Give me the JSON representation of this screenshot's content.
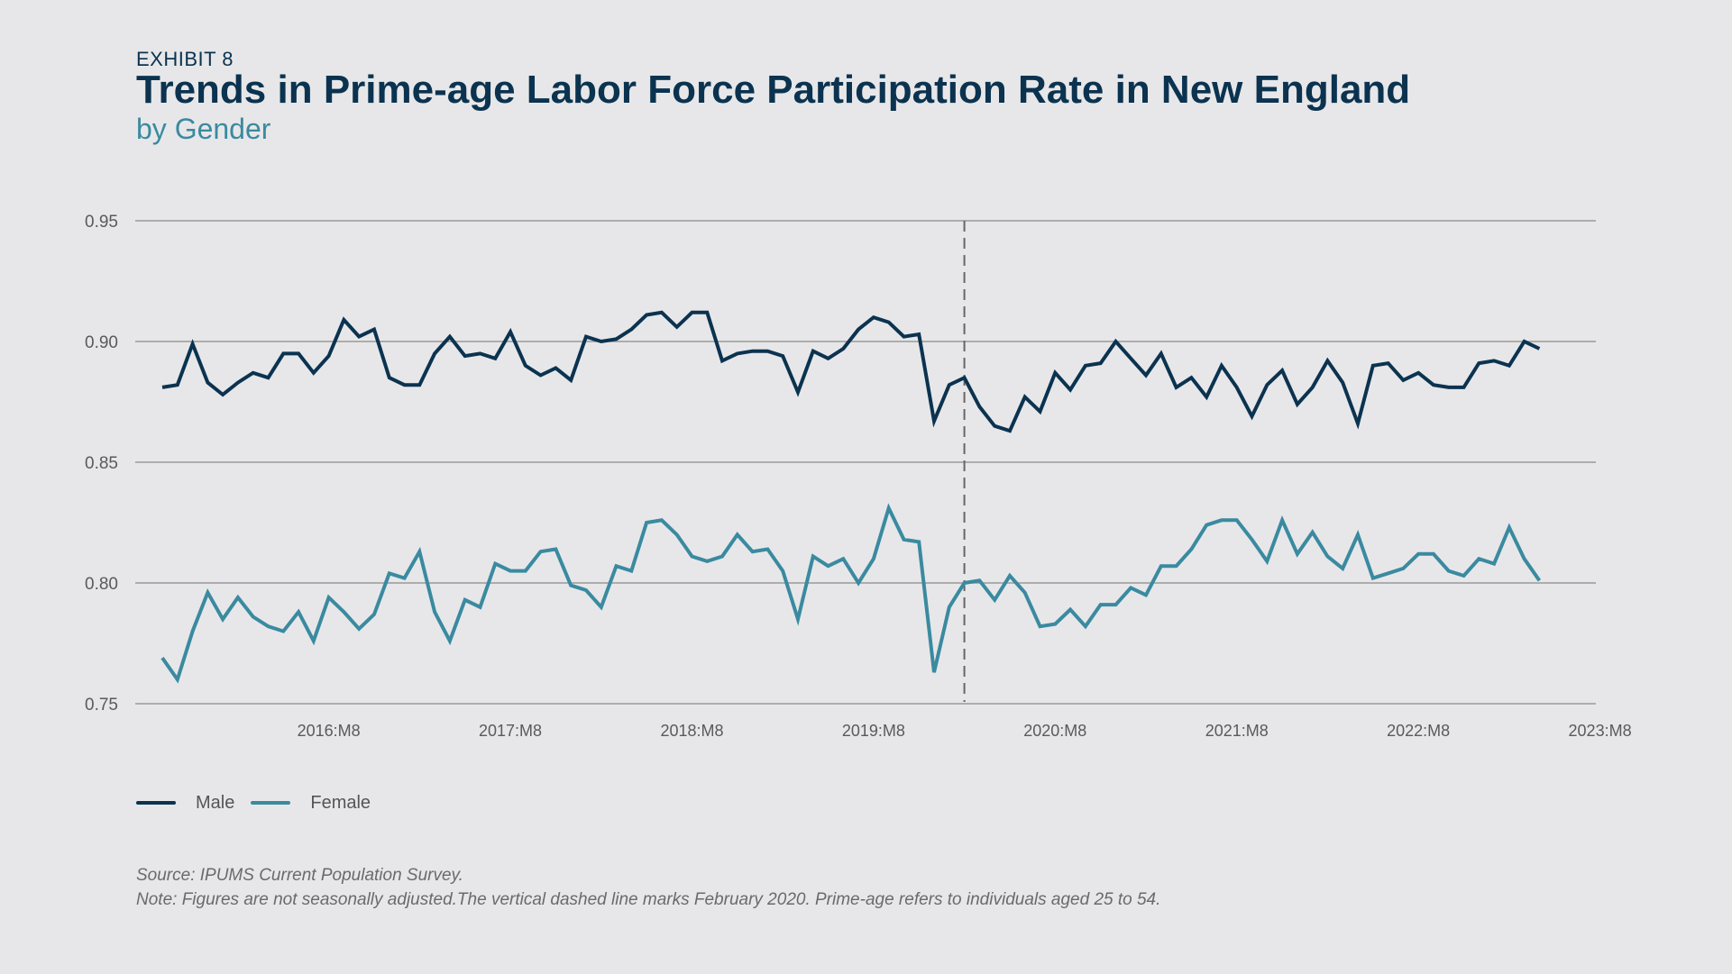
{
  "header": {
    "exhibit": "EXHIBIT 8",
    "title": "Trends in Prime-age Labor Force Participation Rate in New England",
    "subtitle": "by Gender"
  },
  "colors": {
    "male": "#0b3350",
    "female": "#3a8aa0",
    "grid": "#9a9a9a",
    "text": "#5a5a5a",
    "background": "#e7e7e9"
  },
  "footer": {
    "source": "Source: IPUMS Current Population Survey.",
    "note": "Note: Figures are not seasonally adjusted.The vertical dashed line marks February 2020. Prime-age refers to individuals aged 25 to 54."
  },
  "chart_data": {
    "type": "line",
    "title": "Trends in Prime-age Labor Force Participation Rate in New England",
    "subtitle": "by Gender",
    "xlabel": "",
    "ylabel": "",
    "ylim": [
      0.75,
      0.95
    ],
    "yticks": [
      "0.95",
      "0.90",
      "0.85",
      "0.80",
      "0.75"
    ],
    "ytick_values": [
      0.95,
      0.9,
      0.85,
      0.8,
      0.75
    ],
    "xticks": [
      "2016:M8",
      "2017:M8",
      "2018:M8",
      "2019:M8",
      "2020:M8",
      "2021:M8",
      "2022:M8",
      "2023:M8"
    ],
    "x_start": "2015:M9",
    "x_end": "2023:M6",
    "grid": true,
    "legend_position": "bottom-left",
    "reference_line": {
      "x": "2020:M2",
      "style": "dashed"
    },
    "series": [
      {
        "name": "Male",
        "key": "male",
        "values": [
          0.881,
          0.882,
          0.899,
          0.883,
          0.878,
          0.883,
          0.887,
          0.885,
          0.895,
          0.895,
          0.887,
          0.894,
          0.909,
          0.902,
          0.905,
          0.885,
          0.882,
          0.882,
          0.895,
          0.902,
          0.894,
          0.895,
          0.893,
          0.904,
          0.89,
          0.886,
          0.889,
          0.884,
          0.902,
          0.9,
          0.901,
          0.905,
          0.911,
          0.912,
          0.906,
          0.912,
          0.912,
          0.892,
          0.895,
          0.896,
          0.896,
          0.894,
          0.879,
          0.896,
          0.893,
          0.897,
          0.905,
          0.91,
          0.908,
          0.902,
          0.903,
          0.867,
          0.882,
          0.885,
          0.873,
          0.865,
          0.863,
          0.877,
          0.871,
          0.887,
          0.88,
          0.89,
          0.891,
          0.9,
          0.893,
          0.886,
          0.895,
          0.881,
          0.885,
          0.877,
          0.89,
          0.881,
          0.869,
          0.882,
          0.888,
          0.874,
          0.881,
          0.892,
          0.883,
          0.866,
          0.89,
          0.891,
          0.884,
          0.887,
          0.882,
          0.881,
          0.881,
          0.891,
          0.892,
          0.89,
          0.9,
          0.897
        ]
      },
      {
        "name": "Female",
        "key": "female",
        "values": [
          0.769,
          0.76,
          0.78,
          0.796,
          0.785,
          0.794,
          0.786,
          0.782,
          0.78,
          0.788,
          0.776,
          0.794,
          0.788,
          0.781,
          0.787,
          0.804,
          0.802,
          0.813,
          0.788,
          0.776,
          0.793,
          0.79,
          0.808,
          0.805,
          0.805,
          0.813,
          0.814,
          0.799,
          0.797,
          0.79,
          0.807,
          0.805,
          0.825,
          0.826,
          0.82,
          0.811,
          0.809,
          0.811,
          0.82,
          0.813,
          0.814,
          0.805,
          0.785,
          0.811,
          0.807,
          0.81,
          0.8,
          0.81,
          0.831,
          0.818,
          0.817,
          0.763,
          0.79,
          0.8,
          0.801,
          0.793,
          0.803,
          0.796,
          0.782,
          0.783,
          0.789,
          0.782,
          0.791,
          0.791,
          0.798,
          0.795,
          0.807,
          0.807,
          0.814,
          0.824,
          0.826,
          0.826,
          0.818,
          0.809,
          0.826,
          0.812,
          0.821,
          0.811,
          0.806,
          0.82,
          0.802,
          0.804,
          0.806,
          0.812,
          0.812,
          0.805,
          0.803,
          0.81,
          0.808,
          0.823,
          0.81,
          0.801
        ]
      }
    ]
  }
}
